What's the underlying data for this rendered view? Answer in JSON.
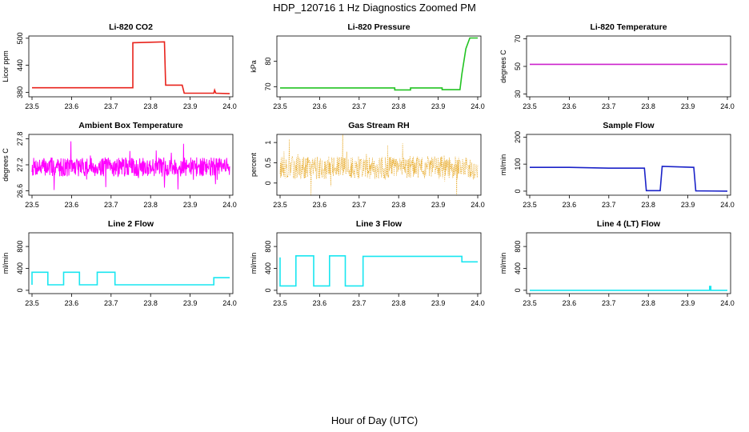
{
  "figure": {
    "title": "HDP_120716  1 Hz Diagnostics Zoomed PM",
    "xlabel": "Hour of Day (UTC)"
  },
  "chart_data": [
    {
      "id": "co2",
      "type": "line",
      "title": "Li-820 CO2",
      "ylabel": "Licor ppm",
      "color": "#e8231c",
      "xlim": [
        23.5,
        24.0
      ],
      "ylim": [
        370,
        505
      ],
      "yticks": [
        380,
        440,
        500
      ],
      "xticks": [
        23.5,
        23.6,
        23.7,
        23.8,
        23.9,
        24.0
      ],
      "series": [
        {
          "x": [
            23.5,
            23.755,
            23.755,
            23.835,
            23.838,
            23.88,
            23.885,
            23.96,
            23.962,
            23.965,
            24.0
          ],
          "y": [
            390,
            390,
            490,
            492,
            396,
            396,
            378,
            378,
            385,
            378,
            377
          ]
        }
      ]
    },
    {
      "id": "pressure",
      "type": "line",
      "title": "Li-820 Pressure",
      "ylabel": "kPa",
      "color": "#22c322",
      "xlim": [
        23.5,
        24.0
      ],
      "ylim": [
        66,
        90
      ],
      "yticks": [
        70,
        80
      ],
      "xticks": [
        23.5,
        23.6,
        23.7,
        23.8,
        23.9,
        24.0
      ],
      "series": [
        {
          "x": [
            23.5,
            23.79,
            23.79,
            23.83,
            23.83,
            23.91,
            23.91,
            23.955,
            23.96,
            23.97,
            23.98,
            24.0
          ],
          "y": [
            69.5,
            69.5,
            68.7,
            68.7,
            69.5,
            69.5,
            68.8,
            68.8,
            75,
            85,
            89.2,
            89.2
          ]
        }
      ]
    },
    {
      "id": "licor-temp",
      "type": "line",
      "title": "Li-820 Temperature",
      "ylabel": "degrees C",
      "color": "#cc22cc",
      "xlim": [
        23.5,
        24.0
      ],
      "ylim": [
        28,
        72
      ],
      "yticks": [
        30,
        50,
        70
      ],
      "xticks": [
        23.5,
        23.6,
        23.7,
        23.8,
        23.9,
        24.0
      ],
      "series": [
        {
          "x": [
            23.5,
            24.0
          ],
          "y": [
            51.5,
            51.5
          ]
        }
      ]
    },
    {
      "id": "box-temp",
      "type": "line",
      "title": "Ambient Box Temperature",
      "ylabel": "degrees C",
      "color": "#ff00ff",
      "noise": {
        "mean": 27.15,
        "amp": 0.22,
        "spike": 0.2,
        "seed": 7
      },
      "xlim": [
        23.5,
        24.0
      ],
      "ylim": [
        26.5,
        27.9
      ],
      "yticks": [
        26.6,
        27.2,
        27.8
      ],
      "xticks": [
        23.5,
        23.6,
        23.7,
        23.8,
        23.9,
        24.0
      ],
      "series": [
        {
          "x": [
            23.5,
            24.0
          ],
          "y": [
            27.15,
            27.15
          ]
        }
      ]
    },
    {
      "id": "rh",
      "type": "scatter",
      "title": "Gas Stream RH",
      "ylabel": "percent",
      "color": "#e39a00",
      "noise": {
        "mean": 0.38,
        "amp": 0.28,
        "spike": 0.35,
        "seed": 13
      },
      "xlim": [
        23.5,
        24.0
      ],
      "ylim": [
        -0.3,
        1.2
      ],
      "yticks": [
        0.0,
        0.5,
        1.0
      ],
      "xticks": [
        23.5,
        23.6,
        23.7,
        23.8,
        23.9,
        24.0
      ],
      "series": [
        {
          "x": [
            23.5,
            24.0
          ],
          "y": [
            0.38,
            0.38
          ]
        }
      ]
    },
    {
      "id": "sample-flow",
      "type": "line",
      "title": "Sample Flow",
      "ylabel": "ml/min",
      "color": "#1a22c8",
      "xlim": [
        23.5,
        24.0
      ],
      "ylim": [
        -15,
        210
      ],
      "yticks": [
        0,
        100,
        200
      ],
      "xticks": [
        23.5,
        23.6,
        23.7,
        23.8,
        23.9,
        24.0
      ],
      "series": [
        {
          "x": [
            23.5,
            23.6,
            23.7,
            23.79,
            23.795,
            23.83,
            23.835,
            23.915,
            23.92,
            24.0
          ],
          "y": [
            88,
            88,
            85,
            85,
            2,
            2,
            92,
            88,
            1,
            0
          ]
        }
      ]
    },
    {
      "id": "line2-flow",
      "type": "line",
      "title": "Line 2 Flow",
      "ylabel": "ml/min",
      "color": "#19e6f0",
      "xlim": [
        23.5,
        24.0
      ],
      "ylim": [
        -60,
        1050
      ],
      "yticks": [
        0,
        400,
        800
      ],
      "xticks": [
        23.5,
        23.6,
        23.7,
        23.8,
        23.9,
        24.0
      ],
      "series": [
        {
          "x": [
            23.5,
            23.5,
            23.54,
            23.54,
            23.58,
            23.58,
            23.62,
            23.62,
            23.665,
            23.665,
            23.71,
            23.71,
            23.96,
            23.96,
            24.0
          ],
          "y": [
            100,
            330,
            330,
            100,
            100,
            330,
            330,
            100,
            100,
            330,
            330,
            100,
            100,
            230,
            230
          ]
        }
      ]
    },
    {
      "id": "line3-flow",
      "type": "line",
      "title": "Line 3 Flow",
      "ylabel": "ml/min",
      "color": "#19e6f0",
      "xlim": [
        23.5,
        24.0
      ],
      "ylim": [
        -60,
        1050
      ],
      "yticks": [
        0,
        400,
        800
      ],
      "xticks": [
        23.5,
        23.6,
        23.7,
        23.8,
        23.9,
        24.0
      ],
      "series": [
        {
          "x": [
            23.5,
            23.5,
            23.54,
            23.54,
            23.585,
            23.585,
            23.625,
            23.625,
            23.665,
            23.665,
            23.71,
            23.71,
            23.96,
            23.96,
            24.0
          ],
          "y": [
            600,
            80,
            80,
            630,
            630,
            80,
            80,
            630,
            630,
            80,
            80,
            620,
            620,
            520,
            520
          ]
        }
      ]
    },
    {
      "id": "line4-flow",
      "type": "line",
      "title": "Line 4 (LT) Flow",
      "ylabel": "ml/min",
      "color": "#19e6f0",
      "xlim": [
        23.5,
        24.0
      ],
      "ylim": [
        -60,
        1050
      ],
      "yticks": [
        0,
        400,
        800
      ],
      "xticks": [
        23.5,
        23.6,
        23.7,
        23.8,
        23.9,
        24.0
      ],
      "series": [
        {
          "x": [
            23.5,
            23.955,
            23.955,
            23.958,
            23.958,
            24.0
          ],
          "y": [
            0,
            0,
            70,
            70,
            0,
            0
          ]
        }
      ]
    }
  ]
}
